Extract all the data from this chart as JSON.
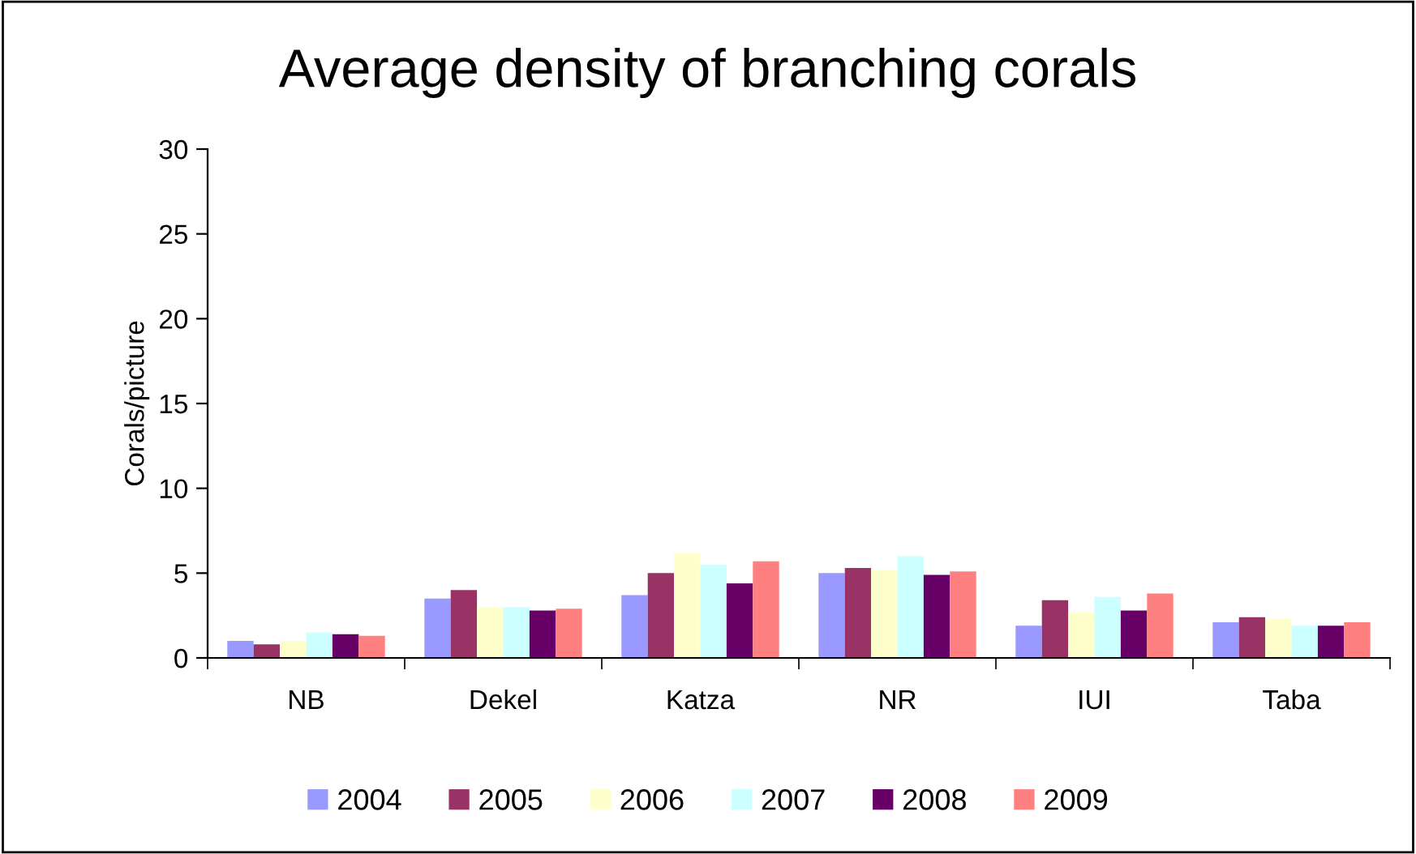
{
  "chart_data": {
    "type": "bar",
    "title": "Average density of branching corals",
    "ylabel": "Corals/picture",
    "categories": [
      "NB",
      "Dekel",
      "Katza",
      "NR",
      "IUI",
      "Taba"
    ],
    "series": [
      {
        "name": "2004",
        "color": "#9999ff",
        "values": [
          1.0,
          3.5,
          3.7,
          5.0,
          1.9,
          2.1
        ]
      },
      {
        "name": "2005",
        "color": "#993366",
        "values": [
          0.8,
          4.0,
          5.0,
          5.3,
          3.4,
          2.4
        ]
      },
      {
        "name": "2006",
        "color": "#ffffcc",
        "values": [
          1.0,
          3.0,
          6.2,
          5.2,
          2.7,
          2.3
        ]
      },
      {
        "name": "2007",
        "color": "#ccffff",
        "values": [
          1.5,
          3.0,
          5.5,
          6.0,
          3.6,
          1.9
        ]
      },
      {
        "name": "2008",
        "color": "#660066",
        "values": [
          1.4,
          2.8,
          4.4,
          4.9,
          2.8,
          1.9
        ]
      },
      {
        "name": "2009",
        "color": "#ff8080",
        "values": [
          1.3,
          2.9,
          5.7,
          5.1,
          3.8,
          2.1
        ]
      }
    ],
    "ylim": [
      0,
      30
    ],
    "yticks": [
      0,
      5,
      10,
      15,
      20,
      25,
      30
    ],
    "grid": false,
    "legend": "bottom"
  }
}
